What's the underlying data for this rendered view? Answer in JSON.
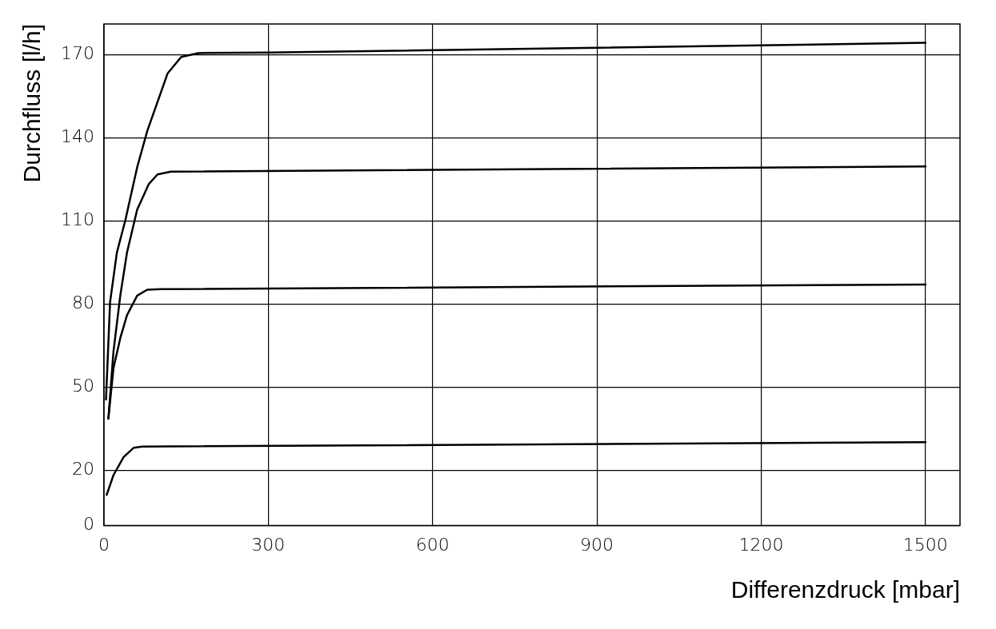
{
  "chart_data": {
    "type": "line",
    "xlabel": "Differenzdruck [mbar]",
    "ylabel": "Durchfluss [l/h]",
    "xlim": [
      0,
      1563
    ],
    "ylim": [
      0,
      181
    ],
    "xticks": [
      0,
      300,
      600,
      900,
      1200,
      1500
    ],
    "yticks": [
      0,
      20,
      50,
      80,
      110,
      140,
      170
    ],
    "grid": true,
    "legend": false,
    "marker": "none",
    "line_style": "solid",
    "series": [
      {
        "color": "#000000",
        "x": [
          3.7,
          11.1,
          23.5,
          39,
          60.6,
          79,
          116,
          141,
          172,
          300,
          1500
        ],
        "values": [
          45.5,
          80.6,
          98.5,
          110.2,
          129.3,
          142.4,
          163.1,
          169.1,
          170.5,
          170.7,
          174.2
        ]
      },
      {
        "color": "#000000",
        "x": [
          8,
          17.3,
          29.7,
          42,
          60.6,
          82,
          97.7,
          122,
          1500
        ],
        "values": [
          38.6,
          62.8,
          82.9,
          98.5,
          114,
          123.3,
          126.7,
          127.7,
          129.6
        ]
      },
      {
        "color": "#000000",
        "x": [
          8,
          17.3,
          29.7,
          42,
          60.6,
          79,
          104,
          1500
        ],
        "values": [
          38.6,
          56.8,
          67.6,
          75.9,
          83,
          85.1,
          85.3,
          87.0
        ]
      },
      {
        "color": "#000000",
        "x": [
          4.9,
          17.3,
          35.8,
          54.4,
          70,
          1500
        ],
        "values": [
          11.1,
          18.2,
          24.7,
          28.1,
          28.5,
          30.1
        ]
      }
    ]
  }
}
